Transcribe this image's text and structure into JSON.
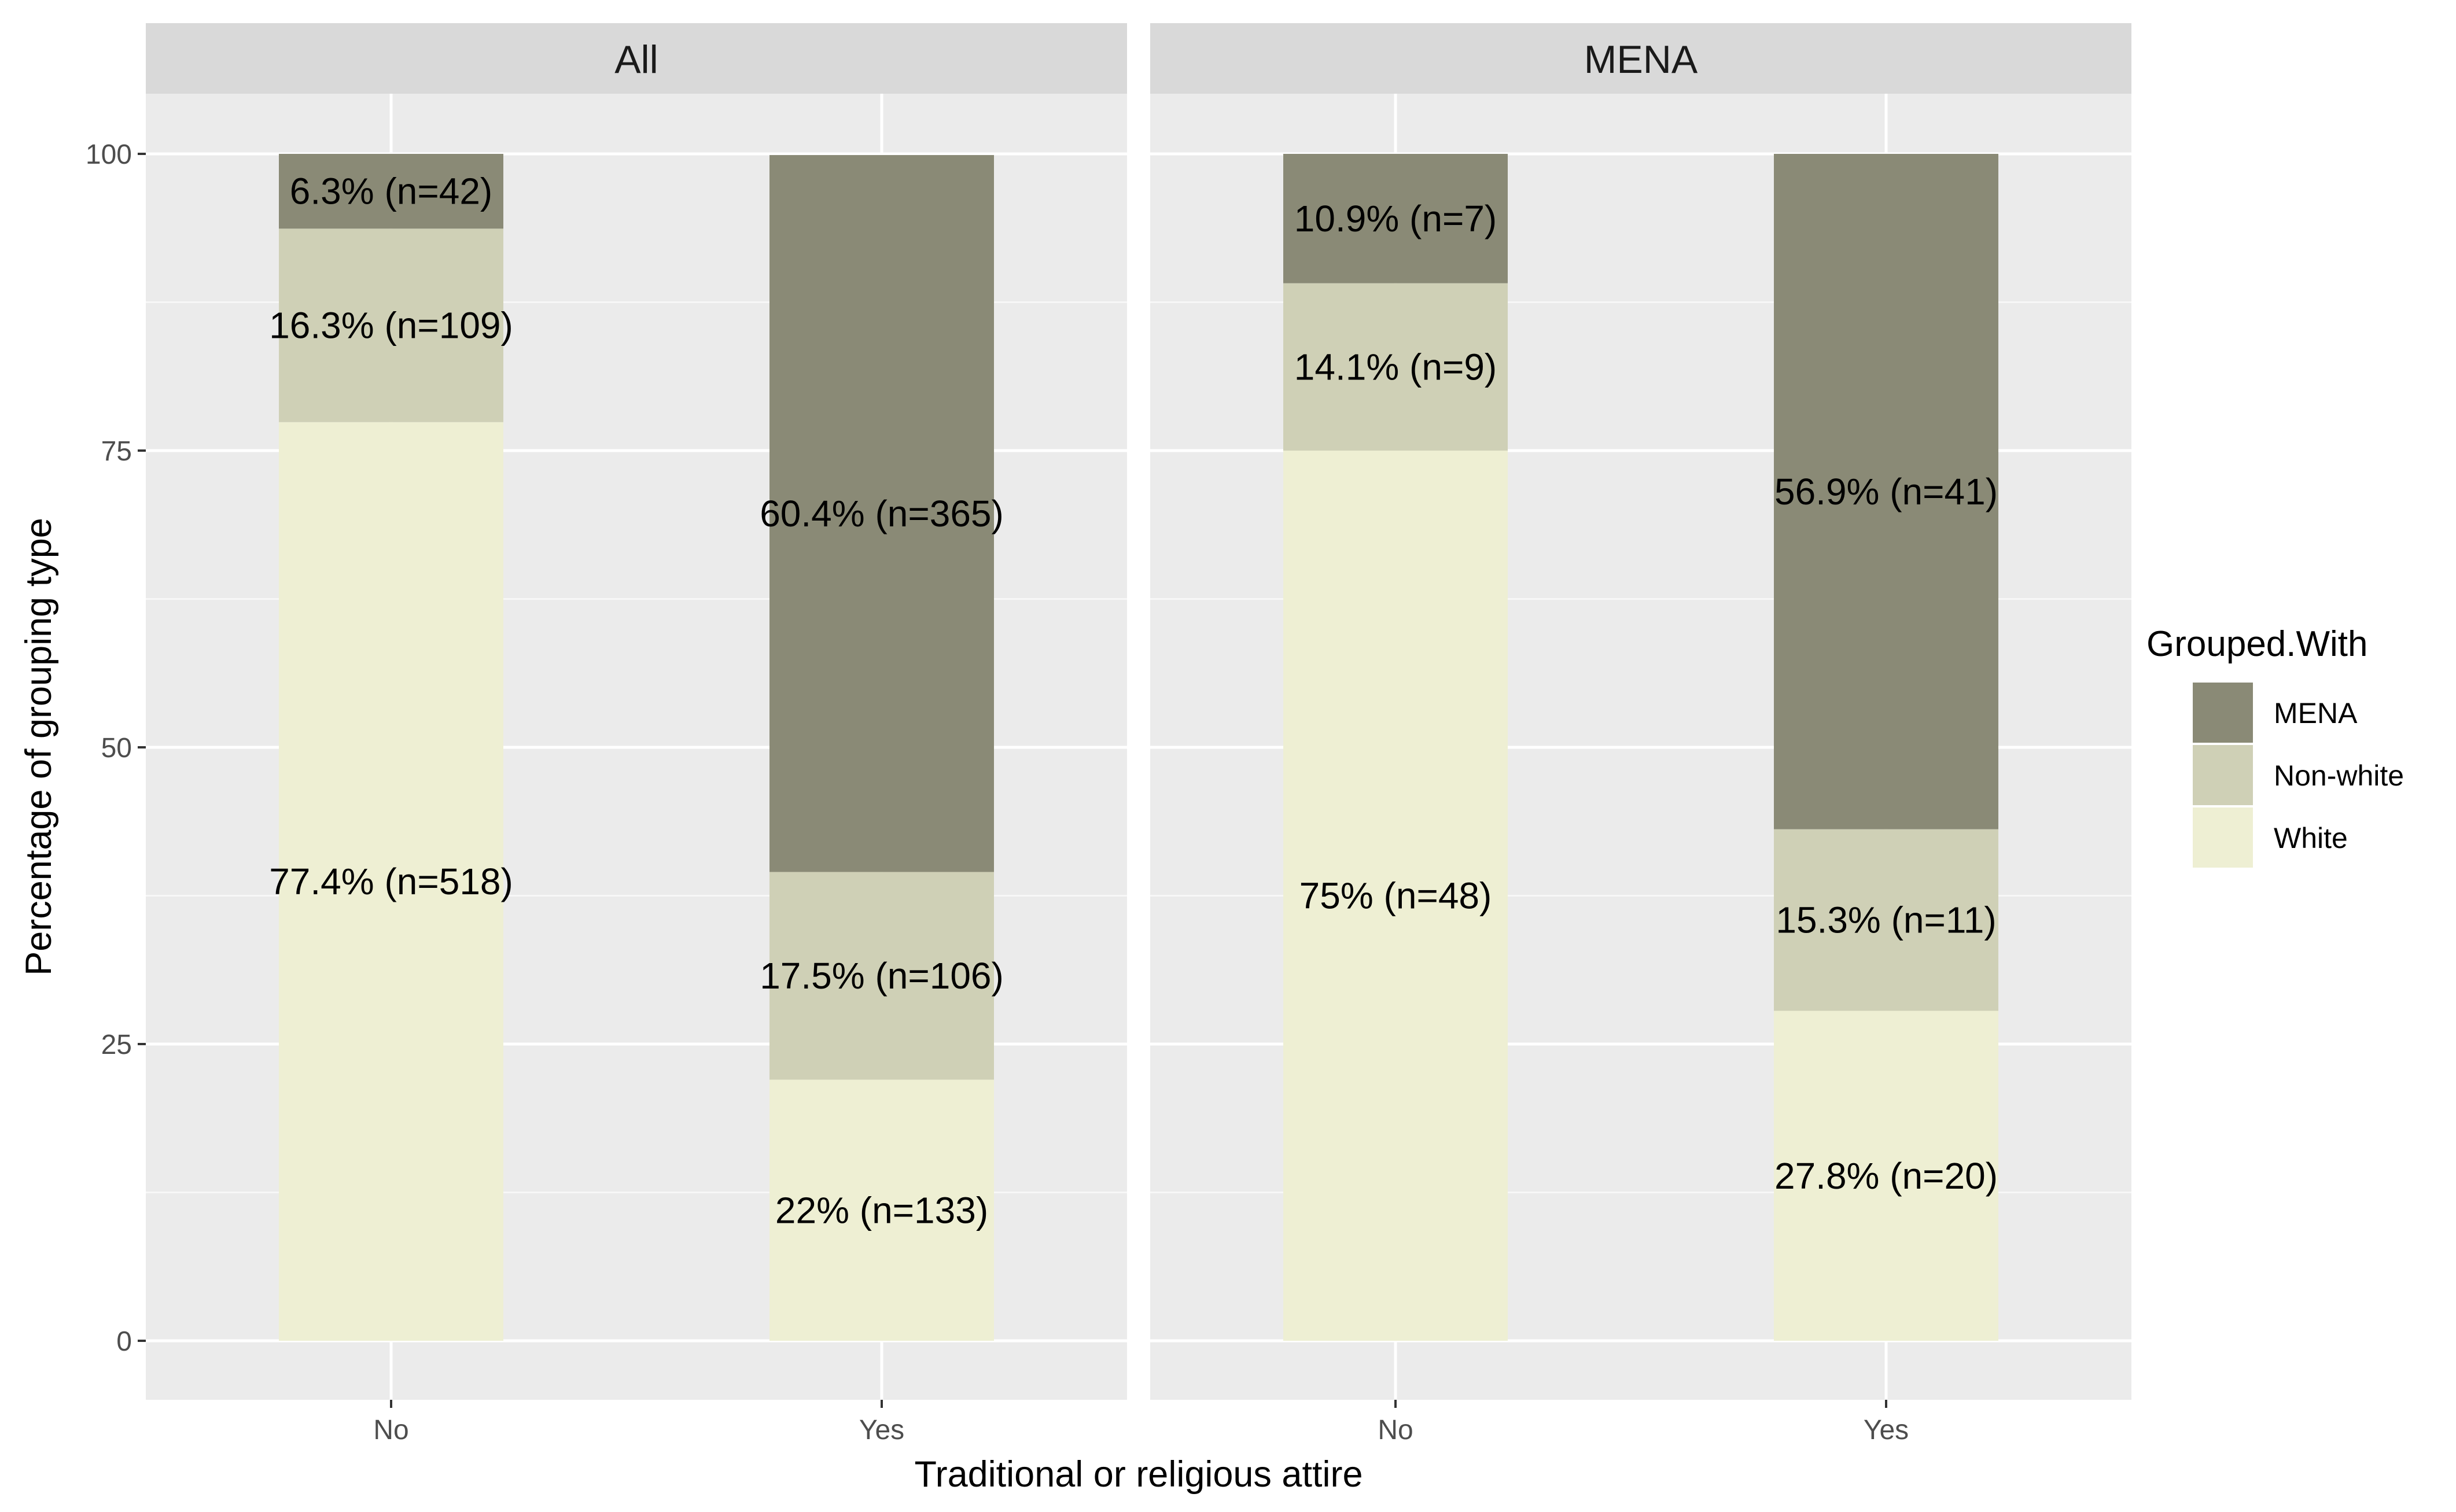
{
  "chart_data": {
    "type": "bar",
    "stacked": true,
    "xlabel": "Traditional or religious attire",
    "ylabel": "Percentage of grouping type",
    "ylim": [
      0,
      105
    ],
    "yticks": [
      0,
      25,
      50,
      75,
      100
    ],
    "categories": [
      "No",
      "Yes"
    ],
    "legend": {
      "title": "Grouped.With",
      "position": "right",
      "entries": [
        {
          "name": "MENA",
          "color": "#8a8a76"
        },
        {
          "name": "Non-white",
          "color": "#cfd0b6"
        },
        {
          "name": "White",
          "color": "#eeefd3"
        }
      ]
    },
    "panels": [
      {
        "title": "All",
        "series": [
          {
            "name": "White",
            "color": "#eeefd3",
            "values": [
              77.4,
              22.0
            ],
            "labels": [
              "77.4% (n=518)",
              "22% (n=133)"
            ]
          },
          {
            "name": "Non-white",
            "color": "#cfd0b6",
            "values": [
              16.3,
              17.5
            ],
            "labels": [
              "16.3% (n=109)",
              "17.5% (n=106)"
            ]
          },
          {
            "name": "MENA",
            "color": "#8a8a76",
            "values": [
              6.3,
              60.4
            ],
            "labels": [
              "6.3% (n=42)",
              "60.4% (n=365)"
            ]
          }
        ]
      },
      {
        "title": "MENA",
        "series": [
          {
            "name": "White",
            "color": "#eeefd3",
            "values": [
              75.0,
              27.8
            ],
            "labels": [
              "75% (n=48)",
              "27.8% (n=20)"
            ]
          },
          {
            "name": "Non-white",
            "color": "#cfd0b6",
            "values": [
              14.1,
              15.3
            ],
            "labels": [
              "14.1% (n=9)",
              "15.3% (n=11)"
            ]
          },
          {
            "name": "MENA",
            "color": "#8a8a76",
            "values": [
              10.9,
              56.9
            ],
            "labels": [
              "10.9% (n=7)",
              "56.9% (n=41)"
            ]
          }
        ]
      }
    ]
  }
}
